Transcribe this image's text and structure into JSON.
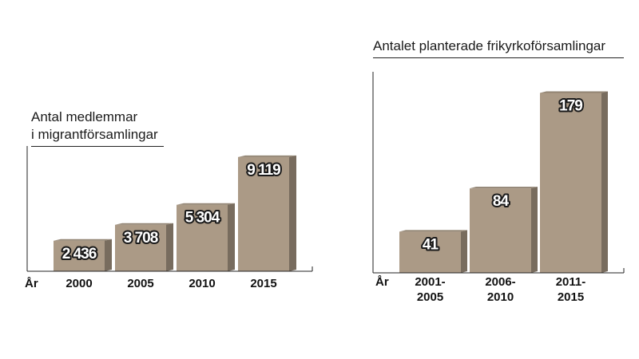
{
  "chart_data": [
    {
      "type": "bar",
      "title_lines": [
        "Antal medlemmar",
        "i migrantförsamlingar"
      ],
      "x_axis_label": "År",
      "categories": [
        "2000",
        "2005",
        "2010",
        "2015"
      ],
      "values": [
        2436,
        3708,
        5304,
        9119
      ],
      "value_labels": [
        "2 436",
        "3 708",
        "5 304",
        "9 119"
      ],
      "ylim": [
        0,
        10000
      ],
      "grid": false,
      "bar_color": "#ab9a86"
    },
    {
      "type": "bar",
      "title_lines": [
        "Antalet planterade  frikyrkoförsamlingar"
      ],
      "x_axis_label": "År",
      "categories": [
        [
          "2001-",
          "2005"
        ],
        [
          "2006-",
          "2010"
        ],
        [
          "2011-",
          "2015"
        ]
      ],
      "values": [
        41,
        84,
        179
      ],
      "value_labels": [
        "41",
        "84",
        "179"
      ],
      "ylim": [
        0,
        200
      ],
      "grid": false,
      "bar_color": "#ab9a86"
    }
  ]
}
